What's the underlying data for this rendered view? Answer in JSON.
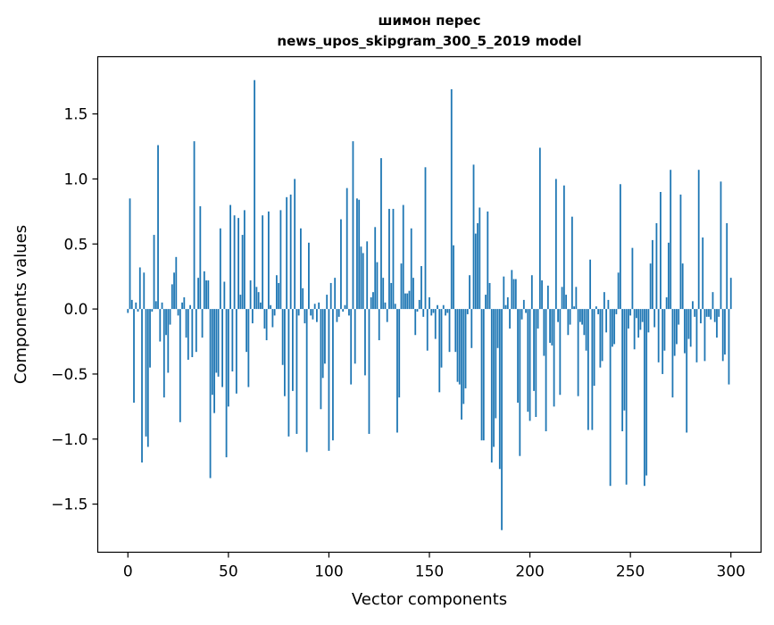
{
  "chart_data": {
    "type": "bar",
    "title_line1": "шимон перес",
    "title_line2": "news_upos_skipgram_300_5_2019 model",
    "xlabel": "Vector components",
    "ylabel": "Components values",
    "xlim": [
      -15,
      315
    ],
    "ylim": [
      -1.87,
      1.94
    ],
    "xticks": [
      0,
      50,
      100,
      150,
      200,
      250,
      300
    ],
    "yticks": [
      -1.5,
      -1.0,
      -0.5,
      0.0,
      0.5,
      1.0,
      1.5
    ],
    "ytick_labels": [
      "−1.5",
      "−1.0",
      "−0.5",
      "0.0",
      "0.5",
      "1.0",
      "1.5"
    ],
    "grid": false,
    "legend": "none",
    "bar_color": "#1f77b4",
    "values": [
      -0.03,
      0.85,
      0.07,
      -0.72,
      0.05,
      -0.02,
      0.32,
      -1.18,
      0.28,
      -0.98,
      -1.06,
      -0.45,
      -0.02,
      0.57,
      0.06,
      1.26,
      -0.25,
      0.05,
      -0.68,
      -0.2,
      -0.49,
      -0.12,
      0.19,
      0.28,
      0.4,
      -0.05,
      -0.87,
      0.05,
      0.09,
      -0.22,
      -0.39,
      0.03,
      -0.37,
      1.29,
      -0.33,
      0.24,
      0.79,
      -0.22,
      0.29,
      0.22,
      0.22,
      -1.3,
      -0.66,
      -0.8,
      -0.49,
      -0.52,
      0.62,
      -0.6,
      0.21,
      -1.14,
      -0.75,
      0.8,
      -0.48,
      0.72,
      -0.65,
      0.7,
      0.11,
      0.57,
      0.76,
      -0.33,
      -0.6,
      0.22,
      -0.11,
      1.76,
      0.17,
      0.13,
      0.05,
      0.72,
      -0.15,
      -0.24,
      0.75,
      0.03,
      -0.14,
      -0.05,
      0.26,
      0.2,
      0.76,
      -0.43,
      -0.67,
      0.86,
      -0.98,
      0.88,
      -0.63,
      1.0,
      -0.96,
      -0.05,
      0.62,
      0.16,
      -0.11,
      -1.1,
      0.51,
      -0.05,
      -0.08,
      0.04,
      -0.1,
      0.05,
      -0.77,
      -0.53,
      -0.42,
      0.11,
      -1.09,
      0.2,
      -1.01,
      0.24,
      -0.1,
      -0.06,
      0.69,
      -0.02,
      0.03,
      0.93,
      -0.05,
      -0.58,
      1.29,
      -0.42,
      0.85,
      0.84,
      0.48,
      0.43,
      -0.51,
      0.52,
      -0.96,
      0.09,
      0.13,
      0.63,
      0.36,
      -0.24,
      1.16,
      0.24,
      0.05,
      -0.1,
      0.77,
      0.2,
      0.77,
      0.04,
      -0.95,
      -0.68,
      0.35,
      0.8,
      0.12,
      0.12,
      0.14,
      0.62,
      0.24,
      -0.2,
      -0.02,
      0.07,
      0.33,
      -0.06,
      1.09,
      -0.32,
      0.09,
      -0.05,
      -0.03,
      -0.23,
      0.03,
      -0.64,
      -0.45,
      0.03,
      -0.05,
      -0.03,
      -0.33,
      1.69,
      0.49,
      -0.33,
      -0.56,
      -0.58,
      -0.85,
      -0.73,
      -0.61,
      -0.04,
      0.26,
      -0.3,
      1.11,
      0.58,
      0.66,
      0.78,
      -1.01,
      -1.01,
      0.11,
      0.75,
      0.2,
      -1.18,
      -1.06,
      -0.84,
      -0.3,
      -1.23,
      -1.7,
      0.25,
      0.03,
      0.09,
      -0.15,
      0.3,
      0.23,
      0.23,
      -0.72,
      -1.13,
      -0.08,
      0.07,
      -0.03,
      -0.79,
      -0.86,
      0.26,
      -0.63,
      -0.83,
      -0.15,
      1.24,
      0.22,
      -0.36,
      -0.94,
      0.18,
      -0.26,
      -0.28,
      -0.75,
      1.0,
      -0.1,
      -0.66,
      0.17,
      0.95,
      0.11,
      -0.2,
      -0.12,
      0.71,
      0.02,
      0.17,
      -0.67,
      -0.1,
      -0.12,
      -0.2,
      -0.32,
      -0.93,
      0.38,
      -0.93,
      -0.59,
      0.02,
      -0.04,
      -0.45,
      -0.4,
      0.13,
      -0.18,
      0.07,
      -1.36,
      -0.29,
      -0.27,
      -0.04,
      0.28,
      0.96,
      -0.94,
      -0.78,
      -1.35,
      -0.15,
      -0.05,
      0.47,
      -0.31,
      -0.07,
      -0.22,
      -0.16,
      -0.1,
      -1.36,
      -1.28,
      -0.18,
      0.35,
      0.53,
      -0.14,
      0.66,
      -0.41,
      0.9,
      -0.5,
      -0.32,
      0.09,
      0.51,
      1.07,
      -0.68,
      -0.36,
      -0.27,
      -0.12,
      0.88,
      0.35,
      -0.34,
      -0.95,
      -0.23,
      -0.29,
      0.06,
      -0.06,
      -0.41,
      1.07,
      -0.11,
      0.55,
      -0.4,
      -0.06,
      -0.06,
      -0.08,
      0.13,
      -0.1,
      -0.22,
      -0.06,
      0.98,
      -0.4,
      -0.35,
      0.66,
      -0.58,
      0.24
    ]
  }
}
